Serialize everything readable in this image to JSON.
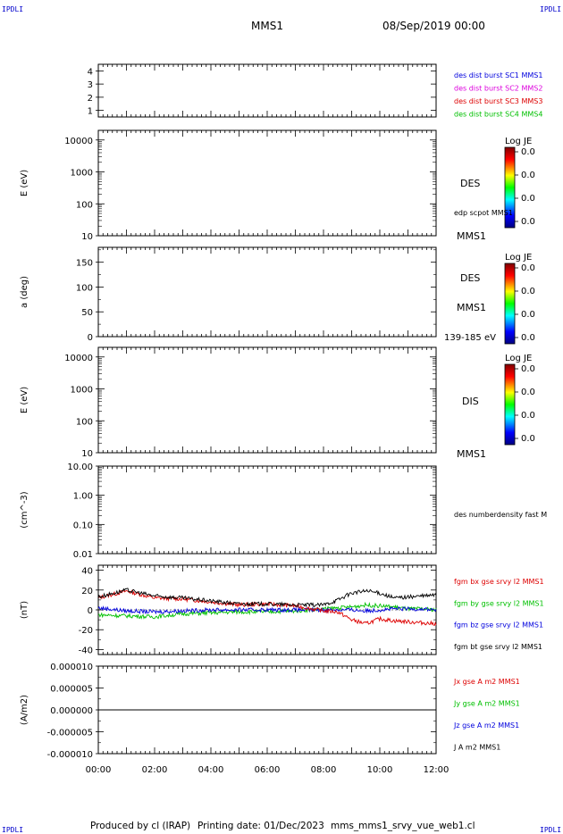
{
  "header": {
    "corner_tl": "IPDLI",
    "corner_tr": "IPDLI",
    "spacecraft": "MMS1",
    "datetime": "08/Sep/2019 00:00"
  },
  "footer": {
    "produced_by": "Produced by cl (IRAP)",
    "printing_date": "Printing date: 01/Dec/2023",
    "filename": "mms_mms1_srvy_vue_web1.cl",
    "corner_bl": "IPDLI",
    "corner_br": "IPDLI"
  },
  "colors": {
    "red": "#dd0000",
    "green": "#00c000",
    "blue": "#0000dd",
    "magenta": "#dd00dd",
    "black": "#000000"
  },
  "chart_data": [
    {
      "type": "line",
      "panel": "burst-intervals",
      "ylim": [
        0.5,
        4.5
      ],
      "yticks": [
        "4",
        "3",
        "2",
        "1"
      ],
      "ylabel": "",
      "series": [
        {
          "name": "des dist burst SC1 MMS1",
          "color": "#0000dd"
        },
        {
          "name": "des dist burst SC2 MMS2",
          "color": "#dd00dd"
        },
        {
          "name": "des dist burst SC3 MMS3",
          "color": "#dd0000"
        },
        {
          "name": "des dist burst SC4 MMS4",
          "color": "#00c000"
        }
      ]
    },
    {
      "type": "heatmap",
      "panel": "des-energy",
      "ylabel": "E (eV)",
      "scale": "log",
      "ylim": [
        10,
        20000
      ],
      "yticks": [
        "10000",
        "1000",
        "100",
        "10"
      ],
      "colorbar": {
        "title": "Log JE",
        "labels": [
          "0.0",
          "0.0",
          "0.0",
          "0.0"
        ]
      },
      "labels": [
        "DES",
        "edp scpot MMS1",
        "MMS1"
      ]
    },
    {
      "type": "heatmap",
      "panel": "des-pitch-angle",
      "ylabel": "a (deg)",
      "ylim": [
        0,
        180
      ],
      "yticks": [
        "150",
        "100",
        "50",
        "0"
      ],
      "colorbar": {
        "title": "Log JE",
        "labels": [
          "0.0",
          "0.0",
          "0.0",
          "0.0"
        ]
      },
      "labels": [
        "DES",
        "MMS1",
        "139-185 eV"
      ]
    },
    {
      "type": "heatmap",
      "panel": "dis-energy",
      "ylabel": "E (eV)",
      "scale": "log",
      "ylim": [
        10,
        20000
      ],
      "yticks": [
        "10000",
        "1000",
        "100",
        "10"
      ],
      "colorbar": {
        "title": "Log JE",
        "labels": [
          "0.0",
          "0.0",
          "0.0",
          "0.0"
        ]
      },
      "labels": [
        "DIS",
        "MMS1"
      ]
    },
    {
      "type": "line",
      "panel": "density",
      "ylabel": "(cm^-3)",
      "scale": "log",
      "ylim": [
        0.01,
        10
      ],
      "yticks": [
        "10.00",
        "1.00",
        "0.10",
        "0.01"
      ],
      "series": [
        {
          "name": "des numberdensity fast M",
          "color": "#000000"
        }
      ]
    },
    {
      "type": "line",
      "panel": "magnetic-field",
      "ylabel": "(nT)",
      "ylim": [
        -45,
        45
      ],
      "yticks": [
        "40",
        "20",
        "0",
        "-20",
        "-40"
      ],
      "x": [
        0,
        1,
        2,
        3,
        4,
        5,
        6,
        7,
        8,
        8.5,
        9,
        9.5,
        10,
        10.5,
        11,
        11.5,
        12
      ],
      "series": [
        {
          "name": "fgm bx gse srvy l2 MMS1",
          "color": "#dd0000",
          "values": [
            12,
            19,
            12,
            11,
            8,
            5,
            6,
            4,
            -1,
            -2,
            -10,
            -14,
            -9,
            -11,
            -12,
            -13,
            -14
          ]
        },
        {
          "name": "fgm by gse srvy l2 MMS1",
          "color": "#00c000",
          "values": [
            -5,
            -6,
            -7,
            -4,
            -3,
            -2,
            -2,
            -1,
            1,
            2,
            3,
            5,
            4,
            3,
            1,
            1,
            0
          ]
        },
        {
          "name": "fgm bz gse srvy l2 MMS1",
          "color": "#0000dd",
          "values": [
            2,
            -1,
            -2,
            -1,
            0,
            0,
            0,
            0,
            0,
            0,
            0,
            -1,
            0,
            1,
            1,
            1,
            0
          ]
        },
        {
          "name": "fgm bt gse srvy l2 MMS1",
          "color": "#000000",
          "values": [
            13,
            20,
            14,
            12,
            9,
            6,
            6,
            5,
            5,
            10,
            17,
            19,
            17,
            12,
            13,
            14,
            15
          ]
        }
      ]
    },
    {
      "type": "line",
      "panel": "current-density",
      "ylabel": "(A/m2)",
      "ylim": [
        -1e-05,
        1e-05
      ],
      "yticks": [
        "0.000010",
        "0.000005",
        "0.000000",
        "-0.000005",
        "-0.000010"
      ],
      "xticks": [
        "00:00",
        "02:00",
        "04:00",
        "06:00",
        "08:00",
        "10:00",
        "12:00"
      ],
      "x": [
        0,
        12
      ],
      "series": [
        {
          "name": "Jx gse A m2 MMS1",
          "color": "#dd0000",
          "values": [
            0,
            0
          ]
        },
        {
          "name": "Jy gse A m2 MMS1",
          "color": "#00c000",
          "values": [
            0,
            0
          ]
        },
        {
          "name": "Jz gse A m2 MMS1",
          "color": "#0000dd",
          "values": [
            0,
            0
          ]
        },
        {
          "name": "J A m2 MMS1",
          "color": "#000000",
          "values": [
            0,
            0
          ]
        }
      ]
    }
  ]
}
